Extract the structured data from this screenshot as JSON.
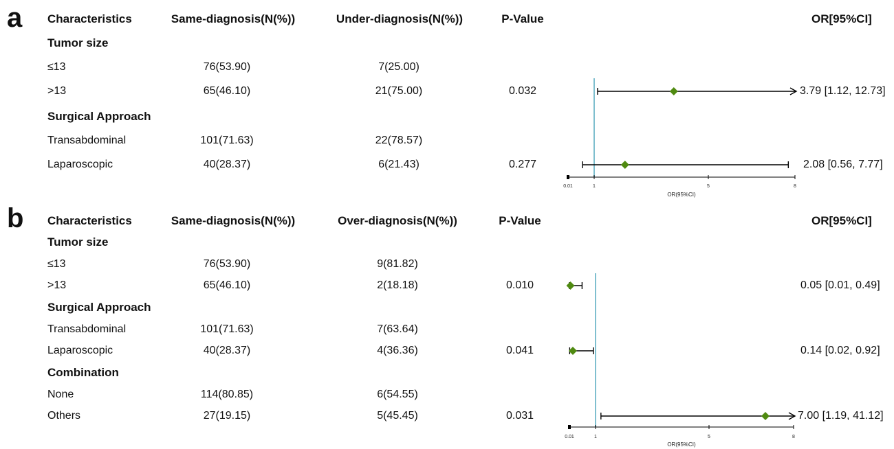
{
  "panels": [
    {
      "letter": "a",
      "headers": {
        "characteristics": "Characteristics",
        "group1": "Same-diagnosis(N(%))",
        "group2": "Under-diagnosis(N(%))",
        "pvalue": "P-Value",
        "or": "OR[95%CI]"
      },
      "rows": [
        {
          "kind": "group",
          "label": "Tumor size"
        },
        {
          "kind": "item",
          "label": "≤13",
          "g1": "76(53.90)",
          "g2": "7(25.00)",
          "p": "",
          "or_text": ""
        },
        {
          "kind": "item",
          "label": ">13",
          "g1": "65(46.10)",
          "g2": "21(75.00)",
          "p": "0.032",
          "or_text": "3.79 [1.12, 12.73]"
        },
        {
          "kind": "group",
          "label": "Surgical Approach"
        },
        {
          "kind": "item",
          "label": "Transabdominal",
          "g1": "101(71.63)",
          "g2": "22(78.57)",
          "p": "",
          "or_text": ""
        },
        {
          "kind": "item",
          "label": "Laparoscopic",
          "g1": "40(28.37)",
          "g2": "6(21.43)",
          "p": "0.277",
          "or_text": "2.08 [0.56, 7.77]"
        }
      ],
      "axis": {
        "xlabel": "OR(95%CI)",
        "ticks": [
          "0.01",
          "1",
          "5",
          "8"
        ]
      }
    },
    {
      "letter": "b",
      "headers": {
        "characteristics": "Characteristics",
        "group1": "Same-diagnosis(N(%))",
        "group2": "Over-diagnosis(N(%))",
        "pvalue": "P-Value",
        "or": "OR[95%CI]"
      },
      "rows": [
        {
          "kind": "group",
          "label": "Tumor size"
        },
        {
          "kind": "item",
          "label": "≤13",
          "g1": "76(53.90)",
          "g2": "9(81.82)",
          "p": "",
          "or_text": ""
        },
        {
          "kind": "item",
          "label": ">13",
          "g1": "65(46.10)",
          "g2": "2(18.18)",
          "p": "0.010",
          "or_text": "0.05 [0.01, 0.49]"
        },
        {
          "kind": "group",
          "label": "Surgical Approach"
        },
        {
          "kind": "item",
          "label": "Transabdominal",
          "g1": "101(71.63)",
          "g2": "7(63.64)",
          "p": "",
          "or_text": ""
        },
        {
          "kind": "item",
          "label": "Laparoscopic",
          "g1": "40(28.37)",
          "g2": "4(36.36)",
          "p": "0.041",
          "or_text": "0.14 [0.02, 0.92]"
        },
        {
          "kind": "group",
          "label": "Combination"
        },
        {
          "kind": "item",
          "label": "None",
          "g1": "114(80.85)",
          "g2": "6(54.55)",
          "p": "",
          "or_text": ""
        },
        {
          "kind": "item",
          "label": "Others",
          "g1": "27(19.15)",
          "g2": "5(45.45)",
          "p": "0.031",
          "or_text": "7.00 [1.19, 41.12]"
        }
      ],
      "axis": {
        "xlabel": "OR(95%CI)",
        "ticks": [
          "0.01",
          "1",
          "5",
          "8"
        ]
      }
    }
  ],
  "chart_data": [
    {
      "type": "forest",
      "xlabel": "OR(95%CI)",
      "xticks": [
        0.01,
        1,
        5,
        8
      ],
      "xlim": [
        0.01,
        8
      ],
      "reference_line": 1,
      "points": [
        {
          "label": ">13",
          "or": 3.79,
          "lo": 1.12,
          "hi": 12.73,
          "truncated_right": true
        },
        {
          "label": "Laparoscopic",
          "or": 2.08,
          "lo": 0.56,
          "hi": 7.77,
          "truncated_right": false
        }
      ]
    },
    {
      "type": "forest",
      "xlabel": "OR(95%CI)",
      "xticks": [
        0.01,
        1,
        5,
        8
      ],
      "xlim": [
        0.01,
        8
      ],
      "reference_line": 1,
      "points": [
        {
          "label": ">13",
          "or": 0.05,
          "lo": 0.01,
          "hi": 0.49,
          "truncated_right": false
        },
        {
          "label": "Laparoscopic",
          "or": 0.14,
          "lo": 0.02,
          "hi": 0.92,
          "truncated_right": false
        },
        {
          "label": "Others",
          "or": 7.0,
          "lo": 1.19,
          "hi": 41.12,
          "truncated_right": true
        }
      ]
    }
  ],
  "colors": {
    "point": "#4f8a10",
    "reference": "#7fbfcf",
    "line": "#000000"
  }
}
